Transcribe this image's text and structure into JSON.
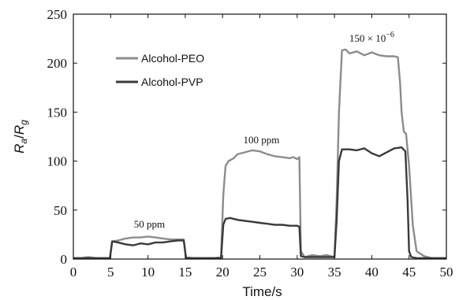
{
  "chart_data": {
    "type": "line",
    "xlabel": "Time/s",
    "ylabel": {
      "main": "R",
      "sub1": "a",
      "slash": "/",
      "main2": "R",
      "sub2": "g"
    },
    "xlim": [
      0,
      50
    ],
    "ylim": [
      0,
      250
    ],
    "xticks": [
      0,
      5,
      10,
      15,
      20,
      25,
      30,
      35,
      40,
      45,
      50
    ],
    "yticks": [
      0,
      50,
      100,
      150,
      200,
      250
    ],
    "grid": false,
    "legend_position": "top-left",
    "annotations": [
      {
        "text": "50 ppm",
        "x": 10.2,
        "y": 32
      },
      {
        "text": "100 ppm",
        "x": 25.2,
        "y": 118
      },
      {
        "text_base": "150",
        "text_times": "×",
        "text_ten": "10",
        "text_exp": "−6",
        "x": 40.0,
        "y": 222
      }
    ],
    "series": [
      {
        "name": "Alcohol-PEO",
        "color": "#8c8c8c",
        "x": [
          0,
          1,
          2,
          3,
          4,
          4.9,
          5.2,
          6,
          7,
          8,
          9,
          10,
          11,
          12,
          13,
          14,
          14.8,
          15.1,
          16,
          17,
          18,
          19,
          19.8,
          20.1,
          20.4,
          20.8,
          21.5,
          22,
          23,
          24,
          25,
          26,
          27,
          28,
          29,
          29.5,
          30,
          30.3,
          30.5,
          31,
          32,
          33,
          34,
          35,
          35.3,
          35.6,
          36,
          36.5,
          37,
          38,
          39,
          40,
          41,
          42,
          43,
          43.5,
          43.8,
          44,
          44.3,
          44.6,
          45,
          45.5,
          46,
          47,
          48,
          49,
          50
        ],
        "y": [
          1,
          1,
          2,
          1,
          1,
          1,
          18,
          19,
          21,
          22,
          22,
          23,
          22,
          21,
          20,
          20,
          20,
          2,
          1,
          1,
          1,
          1,
          2,
          65,
          95,
          100,
          103,
          107,
          109,
          111,
          110,
          107,
          105,
          104,
          103,
          104,
          102,
          104,
          8,
          2,
          4,
          3,
          4,
          2,
          60,
          150,
          213,
          214,
          210,
          212,
          208,
          211,
          208,
          207,
          207,
          206,
          180,
          150,
          130,
          128,
          95,
          35,
          8,
          3,
          1,
          1,
          1
        ]
      },
      {
        "name": "Alcohol-PVP",
        "color": "#3a3a3a",
        "x": [
          0,
          1,
          2,
          3,
          4,
          4.9,
          5.2,
          6,
          7,
          8,
          9,
          10,
          11,
          12,
          13,
          14,
          14.8,
          15.1,
          16,
          17,
          18,
          19,
          19.8,
          20.1,
          20.4,
          21,
          22,
          23,
          24,
          25,
          26,
          27,
          28,
          29,
          30,
          30.3,
          30.5,
          31,
          32,
          33,
          34,
          35,
          35.3,
          35.6,
          36,
          37,
          38,
          39,
          40,
          41,
          42,
          43,
          44,
          44.5,
          44.8,
          45,
          45.3,
          46,
          47,
          48,
          49,
          50
        ],
        "y": [
          1,
          1,
          1,
          1,
          1,
          1,
          18,
          17,
          15,
          14,
          16,
          15,
          17,
          17,
          18,
          19,
          19,
          1,
          1,
          1,
          1,
          1,
          1,
          35,
          41,
          42,
          40,
          39,
          38,
          37,
          36,
          35,
          35,
          34,
          34,
          33,
          3,
          2,
          2,
          2,
          2,
          2,
          40,
          100,
          112,
          112,
          111,
          113,
          108,
          105,
          109,
          113,
          114,
          110,
          60,
          8,
          2,
          1,
          1,
          1,
          1,
          1
        ]
      }
    ]
  }
}
